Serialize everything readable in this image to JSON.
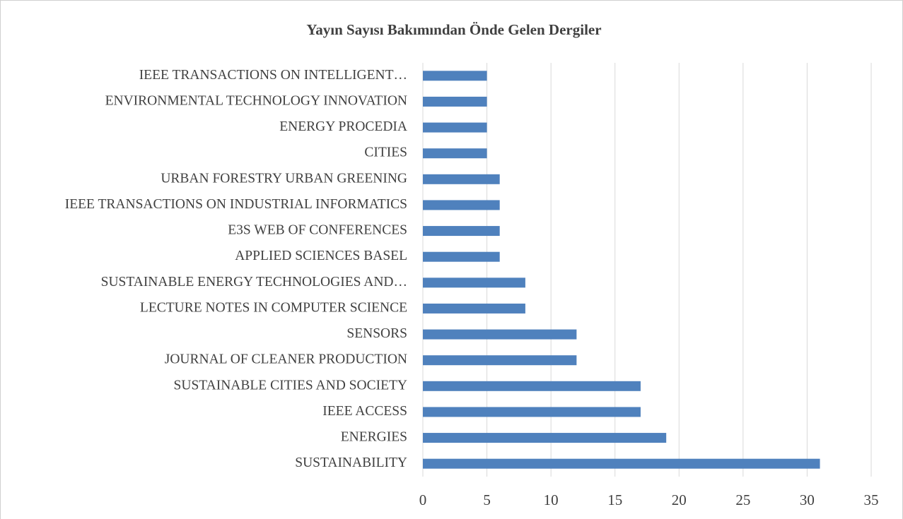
{
  "chart_data": {
    "type": "barh",
    "title": "Yayın Sayısı Bakımından Önde Gelen Dergiler",
    "categories": [
      "IEEE TRANSACTIONS ON INTELLIGENT…",
      "ENVIRONMENTAL TECHNOLOGY INNOVATION",
      "ENERGY PROCEDIA",
      "CITIES",
      "URBAN FORESTRY URBAN GREENING",
      "IEEE TRANSACTIONS ON INDUSTRIAL INFORMATICS",
      "E3S WEB OF CONFERENCES",
      "APPLIED SCIENCES BASEL",
      "SUSTAINABLE ENERGY TECHNOLOGIES AND…",
      "LECTURE NOTES IN COMPUTER SCIENCE",
      "SENSORS",
      "JOURNAL OF CLEANER PRODUCTION",
      "SUSTAINABLE CITIES AND SOCIETY",
      "IEEE ACCESS",
      "ENERGIES",
      "SUSTAINABILITY"
    ],
    "values": [
      5,
      5,
      5,
      5,
      6,
      6,
      6,
      6,
      8,
      8,
      12,
      12,
      17,
      17,
      19,
      31
    ],
    "color": "#4f81bd",
    "xlim": [
      0,
      35
    ],
    "xticks": [
      0,
      5,
      10,
      15,
      20,
      25,
      30,
      35
    ],
    "grid": true
  }
}
